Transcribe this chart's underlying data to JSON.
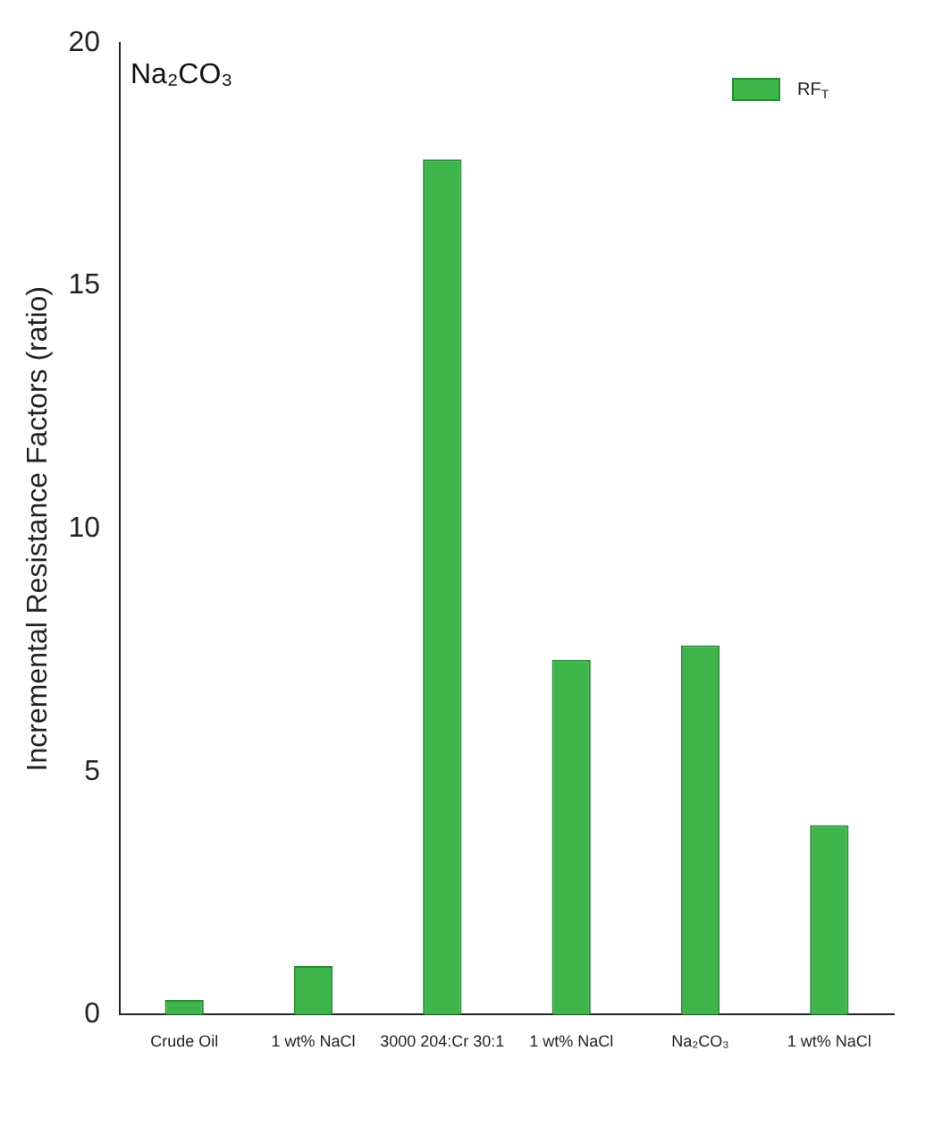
{
  "chart_data": {
    "type": "bar",
    "ylabel": "Incremental Resistance Factors (ratio)",
    "categories": [
      "Crude Oil",
      "1 wt% NaCl",
      "3000 204:Cr 30:1",
      "1 wt% NaCl",
      "Na₂CO₃",
      "1 wt% NaCl"
    ],
    "series": [
      {
        "name": "RF$_{T}$",
        "color": "#3db54a",
        "values": [
          0.3,
          1.0,
          17.6,
          7.3,
          7.6,
          3.9
        ]
      }
    ],
    "ylim": [
      0,
      20
    ],
    "yticks": [
      0,
      5,
      10,
      15,
      20
    ],
    "grid": false,
    "legend": "top right",
    "annotations": [
      "Na₂CO₃"
    ]
  }
}
